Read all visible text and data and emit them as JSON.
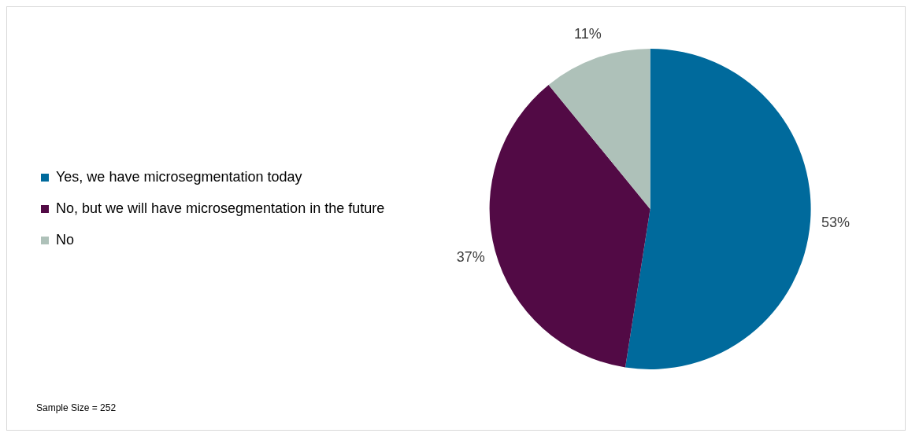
{
  "chart_data": {
    "type": "pie",
    "categories": [
      "Yes, we have microsegmentation today",
      "No, but we will have microsegmentation in the future",
      "No"
    ],
    "values": [
      53,
      37,
      11
    ],
    "colors": [
      "#006a9c",
      "#520a45",
      "#aec1b9"
    ],
    "value_labels": [
      "53%",
      "37%",
      "11%"
    ],
    "legend": "left",
    "annotations": [
      "Sample Size = 252"
    ]
  }
}
